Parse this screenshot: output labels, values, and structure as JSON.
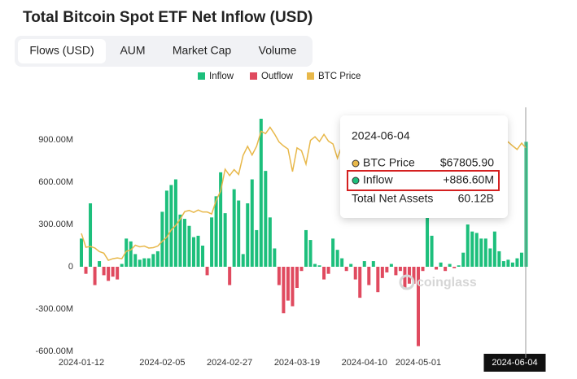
{
  "chart_data": {
    "type": "bar",
    "title": "Total Bitcoin Spot ETF Net Inflow (USD)",
    "tabs": [
      "Flows (USD)",
      "AUM",
      "Market Cap",
      "Volume"
    ],
    "watermark": "coinglass",
    "categories": [
      "2024-01-12",
      null,
      null,
      null,
      null,
      null,
      null,
      null,
      null,
      null,
      null,
      null,
      null,
      null,
      null,
      null,
      null,
      null,
      "2024-02-05",
      null,
      null,
      null,
      null,
      null,
      null,
      null,
      null,
      null,
      null,
      null,
      null,
      null,
      null,
      "2024-02-27",
      null,
      null,
      null,
      null,
      null,
      null,
      null,
      null,
      null,
      null,
      null,
      null,
      null,
      null,
      "2024-03-19",
      null,
      null,
      null,
      null,
      null,
      null,
      null,
      null,
      null,
      null,
      null,
      null,
      null,
      null,
      "2024-04-10",
      null,
      null,
      null,
      null,
      null,
      null,
      null,
      null,
      null,
      null,
      null,
      "2024-05-01",
      null,
      null,
      null,
      null,
      null,
      null,
      null,
      null,
      null,
      null,
      null,
      null,
      null,
      null,
      null,
      null,
      null,
      null,
      null,
      null,
      null,
      null,
      null,
      "2024-06-04"
    ],
    "series": [
      {
        "name": "Inflow",
        "color": "#1dbf7c",
        "values": [
          200,
          null,
          450,
          null,
          40,
          null,
          null,
          null,
          null,
          20,
          200,
          180,
          90,
          50,
          60,
          60,
          90,
          110,
          390,
          540,
          580,
          620,
          370,
          340,
          290,
          210,
          220,
          150,
          null,
          350,
          500,
          670,
          380,
          null,
          550,
          470,
          90,
          450,
          620,
          260,
          1050,
          680,
          350,
          130,
          null,
          null,
          null,
          null,
          null,
          null,
          260,
          190,
          20,
          10,
          null,
          null,
          200,
          120,
          60,
          null,
          20,
          null,
          null,
          40,
          null,
          40,
          null,
          null,
          null,
          20,
          null,
          null,
          null,
          null,
          null,
          null,
          null,
          378,
          220,
          null,
          30,
          null,
          20,
          null,
          10,
          100,
          300,
          250,
          240,
          200,
          200,
          130,
          250,
          110,
          40,
          50,
          30,
          60,
          100,
          886.6
        ],
        "value_labels": [
          null,
          null,
          null,
          null,
          null,
          null,
          null,
          null,
          null,
          null,
          null,
          null,
          null,
          null,
          null,
          null,
          null,
          null,
          null,
          null,
          null,
          null,
          null,
          null,
          null,
          null,
          null,
          null,
          null,
          null,
          null,
          null,
          null,
          null,
          null,
          null,
          null,
          null,
          null,
          null,
          null,
          null,
          null,
          null,
          null,
          null,
          null,
          null,
          null,
          null,
          null,
          null,
          null,
          null,
          null,
          null,
          null,
          null,
          null,
          null,
          null,
          null,
          null,
          null,
          null,
          null,
          null,
          null,
          null,
          null,
          null,
          null,
          null,
          null,
          null,
          null,
          null,
          null,
          null,
          null,
          null,
          null,
          null,
          null,
          null,
          null,
          null,
          null,
          null,
          null,
          null,
          null,
          null,
          null,
          null,
          null,
          null,
          null,
          null,
          "+886.60M"
        ]
      },
      {
        "name": "Outflow",
        "color": "#e04a5f",
        "values": [
          null,
          -50,
          null,
          -130,
          null,
          -60,
          -100,
          -70,
          -90,
          null,
          null,
          null,
          null,
          null,
          null,
          null,
          null,
          null,
          null,
          null,
          null,
          null,
          null,
          null,
          null,
          null,
          null,
          null,
          -60,
          null,
          null,
          null,
          null,
          -130,
          null,
          null,
          null,
          null,
          null,
          null,
          null,
          null,
          null,
          null,
          -130,
          -330,
          -240,
          -280,
          -150,
          -30,
          null,
          null,
          null,
          null,
          -90,
          -50,
          null,
          null,
          null,
          -30,
          null,
          -90,
          -220,
          null,
          -130,
          null,
          -180,
          -80,
          -40,
          null,
          -60,
          -30,
          -160,
          -120,
          -120,
          -563,
          -30,
          null,
          null,
          -20,
          null,
          -30,
          null,
          -10,
          null,
          null,
          null,
          null,
          null,
          null,
          null,
          null,
          null,
          null,
          null,
          null,
          null,
          null,
          null,
          null
        ]
      },
      {
        "name": "BTC Price",
        "color": "#e8b84a",
        "axis": "y2",
        "values": [
          46300,
          42800,
          43000,
          42600,
          41700,
          41300,
          39500,
          39900,
          40100,
          39900,
          41800,
          42100,
          43300,
          42900,
          43100,
          42600,
          42700,
          43100,
          44300,
          45300,
          47200,
          48300,
          49900,
          51800,
          52100,
          51600,
          52200,
          51700,
          51700,
          51200,
          54600,
          57000,
          62500,
          60900,
          62400,
          61200,
          66000,
          68300,
          66100,
          68300,
          72100,
          71500,
          73100,
          71400,
          69400,
          68400,
          67600,
          61900,
          67900,
          67200,
          63800,
          69800,
          70700,
          69500,
          71300,
          69600,
          68900,
          65300,
          68500,
          69900,
          71400,
          69100,
          70500,
          70800,
          67200,
          63100,
          63800,
          61300,
          63500,
          64300,
          66400,
          64500,
          64200,
          63400,
          63100,
          60600,
          58300,
          59100,
          62900,
          63900,
          63200,
          62300,
          61200,
          62900,
          61500,
          66200,
          65200,
          67000,
          66900,
          69300,
          71400,
          70100,
          69100,
          67900,
          68500,
          69400,
          68400,
          67500,
          69100,
          67805.9
        ],
        "value_labels": [
          null,
          null,
          null,
          null,
          null,
          null,
          null,
          null,
          null,
          null,
          null,
          null,
          null,
          null,
          null,
          null,
          null,
          null,
          null,
          null,
          null,
          null,
          null,
          null,
          null,
          null,
          null,
          null,
          null,
          null,
          null,
          null,
          null,
          null,
          null,
          null,
          null,
          null,
          null,
          null,
          null,
          null,
          null,
          null,
          null,
          null,
          null,
          null,
          null,
          null,
          null,
          null,
          null,
          null,
          null,
          null,
          null,
          null,
          null,
          null,
          null,
          null,
          null,
          null,
          null,
          null,
          null,
          null,
          null,
          null,
          null,
          null,
          null,
          null,
          null,
          null,
          null,
          null,
          null,
          null,
          null,
          null,
          null,
          null,
          null,
          null,
          null,
          null,
          null,
          null,
          null,
          null,
          null,
          null,
          null,
          null,
          null,
          null,
          null,
          "$67805.90"
        ]
      }
    ],
    "total_net_assets": {
      "label": "Total Net Assets",
      "value": "60.12B"
    },
    "ylim": [
      -600,
      1200
    ],
    "yticks": [
      {
        "value": 900,
        "label": "900.00M"
      },
      {
        "value": 600,
        "label": "600.00M"
      },
      {
        "value": 300,
        "label": "300.00M"
      },
      0,
      {
        "value": -300,
        "label": "-300.00M"
      },
      {
        "value": -600,
        "label": "-600.00M"
      }
    ],
    "y2lim": [
      16500,
      80600
    ],
    "grid": false,
    "legend": "top"
  }
}
